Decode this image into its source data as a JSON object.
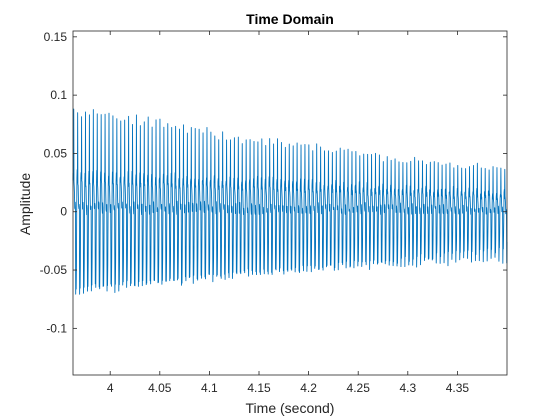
{
  "chart_data": {
    "type": "line",
    "title": "Time Domain",
    "xlabel": "Time (second)",
    "ylabel": "Amplitude",
    "xlim": [
      3.9625,
      4.4
    ],
    "ylim": [
      -0.14,
      0.155
    ],
    "xticks": [
      4,
      4.05,
      4.1,
      4.15,
      4.2,
      4.25,
      4.3,
      4.35
    ],
    "xtick_labels": [
      "4",
      "4.05",
      "4.1",
      "4.15",
      "4.2",
      "4.25",
      "4.3",
      "4.35"
    ],
    "yticks": [
      -0.1,
      -0.05,
      0,
      0.05,
      0.1,
      0.15
    ],
    "ytick_labels": [
      "-0.1",
      "-0.05",
      "0",
      "0.05",
      "0.1",
      "0.15"
    ],
    "grid": false,
    "box": true,
    "series": [
      {
        "color": "#0072BD",
        "waveform": "dense oscillation with slowly decaying envelope",
        "envelope": {
          "time": [
            3.9625,
            4.0,
            4.05,
            4.1,
            4.15,
            4.2,
            4.25,
            4.3,
            4.35,
            4.4
          ],
          "upper_peak": [
            0.087,
            0.085,
            0.078,
            0.07,
            0.063,
            0.057,
            0.052,
            0.045,
            0.041,
            0.037
          ],
          "lower_peak": [
            -0.07,
            -0.068,
            -0.063,
            -0.058,
            -0.053,
            -0.05,
            -0.048,
            -0.046,
            -0.044,
            -0.044
          ],
          "dense_band_upper": [
            0.054,
            0.052,
            0.05,
            0.047,
            0.044,
            0.041,
            0.037,
            0.034,
            0.03,
            0.027
          ],
          "dense_band_lower": [
            -0.054,
            -0.052,
            -0.05,
            -0.047,
            -0.044,
            -0.041,
            -0.037,
            -0.034,
            -0.03,
            -0.027
          ]
        }
      }
    ]
  }
}
